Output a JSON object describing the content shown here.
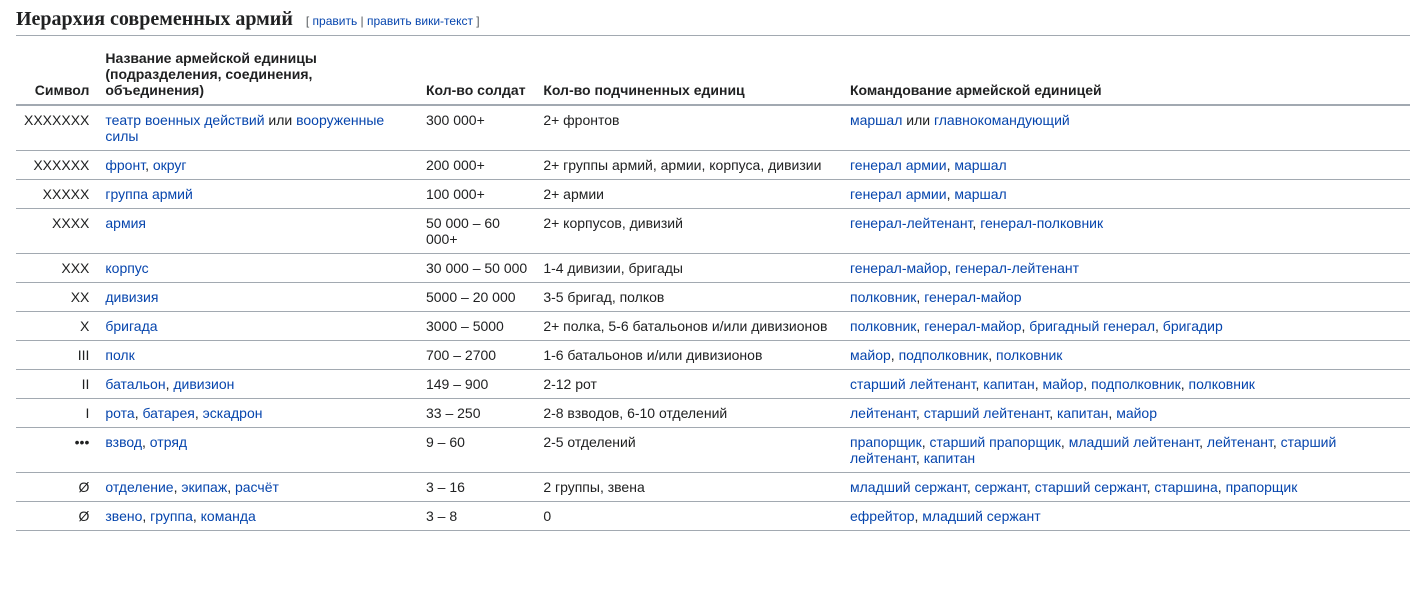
{
  "colors": {
    "link": "#0645ad",
    "text": "#202122",
    "border": "#a2a9b1",
    "background": "#ffffff"
  },
  "heading": "Иерархия современных армий",
  "edit": {
    "open": "[ ",
    "edit": "править",
    "sep": " | ",
    "edit_source": "править вики-текст",
    "close": " ]"
  },
  "columns": {
    "symbol": "Символ",
    "name": "Название армейской единицы (подразделения, соединения, объединения)",
    "soldiers": "Кол-во солдат",
    "subunits": "Кол-во подчиненных единиц",
    "command": "Командование армейской единицей"
  },
  "rows": [
    {
      "symbol": "XXXXXXX",
      "name": [
        {
          "t": "театр военных действий",
          "l": true
        },
        {
          "t": " или "
        },
        {
          "t": "вооруженные силы",
          "l": true
        }
      ],
      "soldiers": "300 000+",
      "subunits": [
        {
          "t": "2+ фронтов"
        }
      ],
      "command": [
        {
          "t": "маршал",
          "l": true
        },
        {
          "t": " или "
        },
        {
          "t": "главнокомандующий",
          "l": true
        }
      ]
    },
    {
      "symbol": "XXXXXX",
      "name": [
        {
          "t": "фронт",
          "l": true
        },
        {
          "t": ", "
        },
        {
          "t": "округ",
          "l": true
        }
      ],
      "soldiers": "200 000+",
      "subunits": [
        {
          "t": "2+ группы армий, армии, корпуса, дивизии"
        }
      ],
      "command": [
        {
          "t": "генерал армии",
          "l": true
        },
        {
          "t": ", "
        },
        {
          "t": "маршал",
          "l": true
        }
      ]
    },
    {
      "symbol": "XXXXX",
      "name": [
        {
          "t": "группа армий",
          "l": true
        }
      ],
      "soldiers": "100 000+",
      "subunits": [
        {
          "t": "2+ армии"
        }
      ],
      "command": [
        {
          "t": "генерал армии",
          "l": true
        },
        {
          "t": ", "
        },
        {
          "t": "маршал",
          "l": true
        }
      ]
    },
    {
      "symbol": "XXXX",
      "name": [
        {
          "t": "армия",
          "l": true
        }
      ],
      "soldiers": "50 000 – 60 000+",
      "subunits": [
        {
          "t": "2+ корпусов, дивизий"
        }
      ],
      "command": [
        {
          "t": "генерал-лейтенант",
          "l": true
        },
        {
          "t": ", "
        },
        {
          "t": "генерал-полковник",
          "l": true
        }
      ]
    },
    {
      "symbol": "XXX",
      "name": [
        {
          "t": "корпус",
          "l": true
        }
      ],
      "soldiers": "30 000 – 50 000",
      "subunits": [
        {
          "t": "1-4 дивизии, бригады"
        }
      ],
      "command": [
        {
          "t": "генерал-майор",
          "l": true
        },
        {
          "t": ", "
        },
        {
          "t": "генерал-лейтенант",
          "l": true
        }
      ]
    },
    {
      "symbol": "XX",
      "name": [
        {
          "t": "дивизия",
          "l": true
        }
      ],
      "soldiers": "5000 – 20 000",
      "subunits": [
        {
          "t": "3-5 бригад, полков"
        }
      ],
      "command": [
        {
          "t": "полковник",
          "l": true
        },
        {
          "t": ", "
        },
        {
          "t": "генерал-майор",
          "l": true
        }
      ]
    },
    {
      "symbol": "X",
      "name": [
        {
          "t": "бригада",
          "l": true
        }
      ],
      "soldiers": "3000 – 5000",
      "subunits": [
        {
          "t": "2+ полка, 5-6 батальонов и/или дивизионов"
        }
      ],
      "command": [
        {
          "t": "полковник",
          "l": true
        },
        {
          "t": ", "
        },
        {
          "t": "генерал-майор",
          "l": true
        },
        {
          "t": ", "
        },
        {
          "t": "бригадный генерал",
          "l": true
        },
        {
          "t": ", "
        },
        {
          "t": "бригадир",
          "l": true
        }
      ]
    },
    {
      "symbol": "III",
      "name": [
        {
          "t": "полк",
          "l": true
        }
      ],
      "soldiers": "700 – 2700",
      "subunits": [
        {
          "t": "1-6 батальонов и/или дивизионов"
        }
      ],
      "command": [
        {
          "t": "майор",
          "l": true
        },
        {
          "t": ", "
        },
        {
          "t": "подполковник",
          "l": true
        },
        {
          "t": ", "
        },
        {
          "t": "полковник",
          "l": true
        }
      ]
    },
    {
      "symbol": "II",
      "name": [
        {
          "t": "батальон",
          "l": true
        },
        {
          "t": ", "
        },
        {
          "t": "дивизион",
          "l": true
        }
      ],
      "soldiers": "149 – 900",
      "subunits": [
        {
          "t": "2-12 рот"
        }
      ],
      "command": [
        {
          "t": "старший лейтенант",
          "l": true
        },
        {
          "t": ", "
        },
        {
          "t": "капитан",
          "l": true
        },
        {
          "t": ", "
        },
        {
          "t": "майор",
          "l": true
        },
        {
          "t": ", "
        },
        {
          "t": "подполковник",
          "l": true
        },
        {
          "t": ", "
        },
        {
          "t": "полковник",
          "l": true
        }
      ]
    },
    {
      "symbol": "I",
      "name": [
        {
          "t": "рота",
          "l": true
        },
        {
          "t": ", "
        },
        {
          "t": "батарея",
          "l": true
        },
        {
          "t": ", "
        },
        {
          "t": "эскадрон",
          "l": true
        }
      ],
      "soldiers": "33 – 250",
      "subunits": [
        {
          "t": "2-8 взводов, 6-10 отделений"
        }
      ],
      "command": [
        {
          "t": "лейтенант",
          "l": true
        },
        {
          "t": ", "
        },
        {
          "t": "старший лейтенант",
          "l": true
        },
        {
          "t": ", "
        },
        {
          "t": "капитан",
          "l": true
        },
        {
          "t": ", "
        },
        {
          "t": "майор",
          "l": true
        }
      ]
    },
    {
      "symbol": "•••",
      "name": [
        {
          "t": "взвод",
          "l": true
        },
        {
          "t": ", "
        },
        {
          "t": "отряд",
          "l": true
        }
      ],
      "soldiers": "9 – 60",
      "subunits": [
        {
          "t": "2-5 отделений"
        }
      ],
      "command": [
        {
          "t": "прапорщик",
          "l": true
        },
        {
          "t": ", "
        },
        {
          "t": "старший прапорщик",
          "l": true
        },
        {
          "t": ", "
        },
        {
          "t": "младший лейтенант",
          "l": true
        },
        {
          "t": ", "
        },
        {
          "t": "лейтенант",
          "l": true
        },
        {
          "t": ", "
        },
        {
          "t": "старший лейтенант",
          "l": true
        },
        {
          "t": ", "
        },
        {
          "t": "капитан",
          "l": true
        }
      ]
    },
    {
      "symbol": "Ø",
      "name": [
        {
          "t": "отделение",
          "l": true
        },
        {
          "t": ", "
        },
        {
          "t": "экипаж",
          "l": true
        },
        {
          "t": ", "
        },
        {
          "t": "расчёт",
          "l": true
        }
      ],
      "soldiers": "3 – 16",
      "subunits": [
        {
          "t": "2 группы, звена"
        }
      ],
      "command": [
        {
          "t": "младший сержант",
          "l": true
        },
        {
          "t": ", "
        },
        {
          "t": "сержант",
          "l": true
        },
        {
          "t": ", "
        },
        {
          "t": "старший сержант",
          "l": true
        },
        {
          "t": ", "
        },
        {
          "t": "старшина",
          "l": true
        },
        {
          "t": ", "
        },
        {
          "t": "прапорщик",
          "l": true
        }
      ]
    },
    {
      "symbol": "Ø",
      "name": [
        {
          "t": "звено",
          "l": true
        },
        {
          "t": ", "
        },
        {
          "t": "группа",
          "l": true
        },
        {
          "t": ", "
        },
        {
          "t": "команда",
          "l": true
        }
      ],
      "soldiers": "3 – 8",
      "subunits": [
        {
          "t": "0"
        }
      ],
      "command": [
        {
          "t": "ефрейтор",
          "l": true
        },
        {
          "t": ", "
        },
        {
          "t": "младший сержант",
          "l": true
        }
      ]
    }
  ]
}
